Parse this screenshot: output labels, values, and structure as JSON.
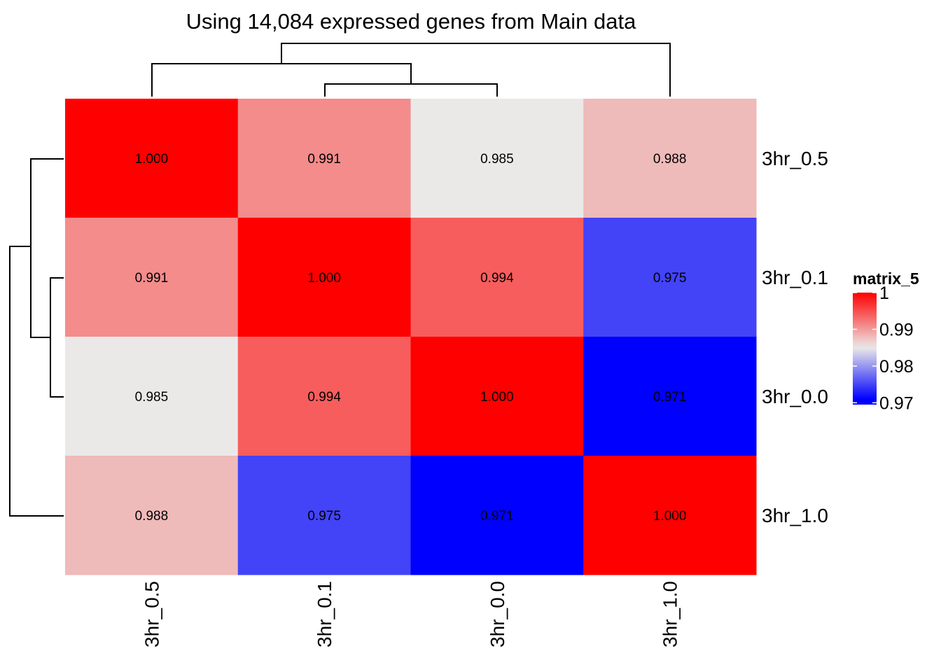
{
  "chart_data": {
    "type": "heatmap",
    "title": "Using 14,084 expressed genes from Main data",
    "rows": [
      "3hr_0.5",
      "3hr_0.1",
      "3hr_0.0",
      "3hr_1.0"
    ],
    "columns": [
      "3hr_0.5",
      "3hr_0.1",
      "3hr_0.0",
      "3hr_1.0"
    ],
    "values": [
      [
        1.0,
        0.991,
        0.985,
        0.988
      ],
      [
        0.991,
        1.0,
        0.994,
        0.975
      ],
      [
        0.985,
        0.994,
        1.0,
        0.971
      ],
      [
        0.988,
        0.975,
        0.971,
        1.0
      ]
    ],
    "cell_labels": [
      [
        "1.000",
        "0.991",
        "0.985",
        "0.988"
      ],
      [
        "0.991",
        "1.000",
        "0.994",
        "0.975"
      ],
      [
        "0.985",
        "0.994",
        "1.000",
        "0.971"
      ],
      [
        "0.988",
        "0.975",
        "0.971",
        "1.000"
      ]
    ],
    "color_scale": {
      "min": 0.971,
      "mid": 0.985,
      "max": 1.0,
      "low_color": "#0000ff",
      "mid_color": "#ebe9e8",
      "high_color": "#ff0000"
    },
    "legend": {
      "title": "matrix_5",
      "ticks": [
        1,
        0.99,
        0.98,
        0.97
      ],
      "tick_labels": [
        "1",
        "0.99",
        "0.98",
        "0.97"
      ],
      "placement": "right"
    },
    "row_dendrogram": "((3hr_0.5,(3hr_0.1,3hr_0.0)),3hr_1.0)",
    "column_dendrogram": "((3hr_0.5,(3hr_0.1,3hr_0.0)),3hr_1.0)"
  }
}
